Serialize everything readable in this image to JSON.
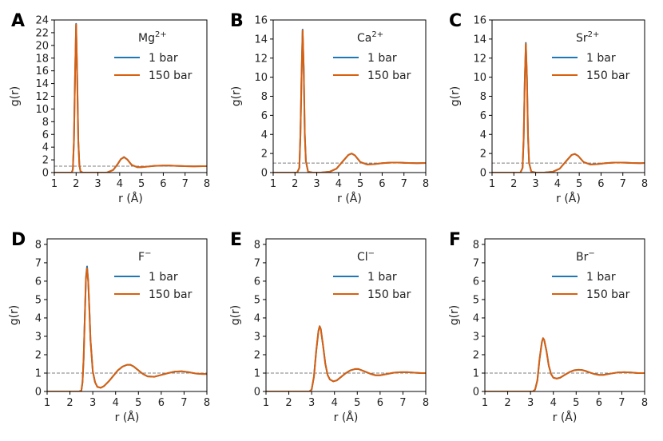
{
  "chart_data": [
    {
      "type": "line",
      "panel_label": "A",
      "legend_title": "Mg",
      "legend_sup": "2+",
      "xlabel": "r (Å)",
      "ylabel": "g(r)",
      "xlim": [
        1,
        8
      ],
      "ylim": [
        0,
        24
      ],
      "xticks": [
        "1",
        "2",
        "3",
        "4",
        "5",
        "6",
        "7",
        "8"
      ],
      "yticks": [
        "0",
        "2",
        "4",
        "6",
        "8",
        "10",
        "12",
        "14",
        "16",
        "18",
        "20",
        "22",
        "24"
      ],
      "reference_line": 1,
      "series": [
        {
          "name": "1 bar",
          "color": "#1f77b4",
          "x": [
            1.0,
            1.8,
            1.85,
            1.9,
            1.95,
            2.0,
            2.05,
            2.1,
            2.15,
            2.2,
            2.3,
            2.6,
            3.0,
            3.4,
            3.7,
            3.9,
            4.05,
            4.2,
            4.35,
            4.55,
            4.8,
            5.0,
            5.3,
            5.6,
            6.0,
            6.3,
            6.6,
            7.0,
            7.4,
            7.8,
            8.0
          ],
          "y": [
            0,
            0,
            0.5,
            5,
            15,
            23.4,
            15,
            5,
            1.2,
            0.2,
            0,
            0,
            0,
            0,
            0.4,
            1.3,
            2.1,
            2.45,
            2.05,
            1.2,
            0.85,
            0.85,
            0.95,
            1.05,
            1.1,
            1.1,
            1.05,
            1.0,
            0.98,
            1.0,
            1.0
          ]
        },
        {
          "name": "150 bar",
          "color": "#d95f0e",
          "x": [
            1.0,
            1.8,
            1.85,
            1.9,
            1.95,
            2.0,
            2.05,
            2.1,
            2.15,
            2.2,
            2.3,
            2.6,
            3.0,
            3.4,
            3.7,
            3.9,
            4.05,
            4.2,
            4.35,
            4.55,
            4.8,
            5.0,
            5.3,
            5.6,
            6.0,
            6.3,
            6.6,
            7.0,
            7.4,
            7.8,
            8.0
          ],
          "y": [
            0,
            0,
            0.5,
            5,
            15,
            23.3,
            15,
            5,
            1.2,
            0.2,
            0,
            0,
            0,
            0,
            0.4,
            1.3,
            2.1,
            2.4,
            2.05,
            1.2,
            0.85,
            0.85,
            0.95,
            1.05,
            1.1,
            1.1,
            1.05,
            1.0,
            0.98,
            1.0,
            1.0
          ]
        }
      ]
    },
    {
      "type": "line",
      "panel_label": "B",
      "legend_title": "Ca",
      "legend_sup": "2+",
      "xlabel": "r (Å)",
      "ylabel": "g(r)",
      "xlim": [
        1,
        8
      ],
      "ylim": [
        0,
        16
      ],
      "xticks": [
        "1",
        "2",
        "3",
        "4",
        "5",
        "6",
        "7",
        "8"
      ],
      "yticks": [
        "0",
        "2",
        "4",
        "6",
        "8",
        "10",
        "12",
        "14",
        "16"
      ],
      "reference_line": 1,
      "series": [
        {
          "name": "1 bar",
          "color": "#1f77b4",
          "x": [
            1.0,
            2.1,
            2.2,
            2.25,
            2.3,
            2.35,
            2.4,
            2.45,
            2.5,
            2.6,
            2.8,
            3.2,
            3.6,
            3.9,
            4.2,
            4.45,
            4.6,
            4.75,
            5.0,
            5.3,
            5.6,
            6.0,
            6.4,
            6.8,
            7.2,
            7.6,
            8.0
          ],
          "y": [
            0,
            0,
            0.5,
            4,
            10,
            15,
            11,
            4,
            1.2,
            0.1,
            0,
            0,
            0.1,
            0.4,
            1.2,
            1.85,
            2.0,
            1.8,
            1.1,
            0.85,
            0.88,
            0.98,
            1.05,
            1.05,
            1.0,
            0.98,
            1.0
          ]
        },
        {
          "name": "150 bar",
          "color": "#d95f0e",
          "x": [
            1.0,
            2.1,
            2.2,
            2.25,
            2.3,
            2.35,
            2.4,
            2.45,
            2.5,
            2.6,
            2.8,
            3.2,
            3.6,
            3.9,
            4.2,
            4.45,
            4.6,
            4.75,
            5.0,
            5.3,
            5.6,
            6.0,
            6.4,
            6.8,
            7.2,
            7.6,
            8.0
          ],
          "y": [
            0,
            0,
            0.5,
            4,
            10,
            14.9,
            11,
            4,
            1.2,
            0.1,
            0,
            0,
            0.1,
            0.4,
            1.2,
            1.85,
            2.0,
            1.8,
            1.1,
            0.85,
            0.88,
            0.98,
            1.05,
            1.05,
            1.0,
            0.98,
            1.0
          ]
        }
      ]
    },
    {
      "type": "line",
      "panel_label": "C",
      "legend_title": "Sr",
      "legend_sup": "2+",
      "xlabel": "r (Å)",
      "ylabel": "g(r)",
      "xlim": [
        1,
        8
      ],
      "ylim": [
        0,
        16
      ],
      "xticks": [
        "1",
        "2",
        "3",
        "4",
        "5",
        "6",
        "7",
        "8"
      ],
      "yticks": [
        "0",
        "2",
        "4",
        "6",
        "8",
        "10",
        "12",
        "14",
        "16"
      ],
      "reference_line": 1,
      "series": [
        {
          "name": "1 bar",
          "color": "#1f77b4",
          "x": [
            1.0,
            2.3,
            2.4,
            2.45,
            2.5,
            2.55,
            2.6,
            2.65,
            2.7,
            2.8,
            3.0,
            3.4,
            3.8,
            4.1,
            4.4,
            4.65,
            4.8,
            4.95,
            5.2,
            5.5,
            5.8,
            6.2,
            6.6,
            7.0,
            7.4,
            7.8,
            8.0
          ],
          "y": [
            0,
            0,
            0.5,
            3.5,
            9.5,
            13.6,
            10,
            3.8,
            1.0,
            0.1,
            0,
            0,
            0.1,
            0.4,
            1.2,
            1.85,
            1.95,
            1.75,
            1.1,
            0.85,
            0.88,
            0.98,
            1.05,
            1.05,
            1.0,
            0.98,
            1.0
          ]
        },
        {
          "name": "150 bar",
          "color": "#d95f0e",
          "x": [
            1.0,
            2.3,
            2.4,
            2.45,
            2.5,
            2.55,
            2.6,
            2.65,
            2.7,
            2.8,
            3.0,
            3.4,
            3.8,
            4.1,
            4.4,
            4.65,
            4.8,
            4.95,
            5.2,
            5.5,
            5.8,
            6.2,
            6.6,
            7.0,
            7.4,
            7.8,
            8.0
          ],
          "y": [
            0,
            0,
            0.5,
            3.5,
            9.5,
            13.5,
            10,
            3.8,
            1.0,
            0.1,
            0,
            0,
            0.1,
            0.4,
            1.2,
            1.85,
            1.95,
            1.75,
            1.1,
            0.85,
            0.88,
            0.98,
            1.05,
            1.05,
            1.0,
            0.98,
            1.0
          ]
        }
      ]
    },
    {
      "type": "line",
      "panel_label": "D",
      "legend_title": "F",
      "legend_sup": "−",
      "xlabel": "r (Å)",
      "ylabel": "g(r)",
      "xlim": [
        1,
        8
      ],
      "ylim": [
        0,
        8.3
      ],
      "xticks": [
        "1",
        "2",
        "3",
        "4",
        "5",
        "6",
        "7",
        "8"
      ],
      "yticks": [
        "0",
        "1",
        "2",
        "3",
        "4",
        "5",
        "6",
        "7",
        "8"
      ],
      "reference_line": 1,
      "series": [
        {
          "name": "1 bar",
          "color": "#1f77b4",
          "x": [
            1.0,
            2.4,
            2.5,
            2.55,
            2.6,
            2.65,
            2.7,
            2.75,
            2.8,
            2.85,
            2.9,
            3.0,
            3.1,
            3.2,
            3.35,
            3.5,
            3.7,
            3.9,
            4.1,
            4.3,
            4.5,
            4.65,
            4.8,
            5.0,
            5.2,
            5.4,
            5.7,
            6.0,
            6.3,
            6.6,
            6.9,
            7.2,
            7.5,
            7.8,
            8.0
          ],
          "y": [
            0,
            0,
            0.05,
            0.5,
            1.8,
            4.0,
            6.2,
            6.8,
            6.0,
            4.5,
            2.8,
            1.1,
            0.5,
            0.25,
            0.2,
            0.3,
            0.55,
            0.85,
            1.15,
            1.35,
            1.45,
            1.45,
            1.35,
            1.15,
            0.95,
            0.82,
            0.8,
            0.9,
            1.0,
            1.08,
            1.1,
            1.05,
            0.98,
            0.95,
            0.95
          ]
        },
        {
          "name": "150 bar",
          "color": "#d95f0e",
          "x": [
            1.0,
            2.4,
            2.5,
            2.55,
            2.6,
            2.65,
            2.7,
            2.75,
            2.8,
            2.85,
            2.9,
            3.0,
            3.1,
            3.2,
            3.35,
            3.5,
            3.7,
            3.9,
            4.1,
            4.3,
            4.5,
            4.65,
            4.8,
            5.0,
            5.2,
            5.4,
            5.7,
            6.0,
            6.3,
            6.6,
            6.9,
            7.2,
            7.5,
            7.8,
            8.0
          ],
          "y": [
            0,
            0,
            0.05,
            0.5,
            1.8,
            4.0,
            6.1,
            6.7,
            6.0,
            4.5,
            2.8,
            1.1,
            0.5,
            0.25,
            0.2,
            0.3,
            0.55,
            0.85,
            1.15,
            1.35,
            1.45,
            1.45,
            1.35,
            1.15,
            0.95,
            0.82,
            0.8,
            0.9,
            1.0,
            1.08,
            1.1,
            1.05,
            0.98,
            0.95,
            0.95
          ]
        }
      ]
    },
    {
      "type": "line",
      "panel_label": "E",
      "legend_title": "Cl",
      "legend_sup": "−",
      "xlabel": "r (Å)",
      "ylabel": "g(r)",
      "xlim": [
        1,
        8
      ],
      "ylim": [
        0,
        8.3
      ],
      "xticks": [
        "1",
        "2",
        "3",
        "4",
        "5",
        "6",
        "7",
        "8"
      ],
      "yticks": [
        "0",
        "1",
        "2",
        "3",
        "4",
        "5",
        "6",
        "7",
        "8"
      ],
      "reference_line": 1,
      "series": [
        {
          "name": "1 bar",
          "color": "#1f77b4",
          "x": [
            1.0,
            2.9,
            3.0,
            3.1,
            3.2,
            3.3,
            3.35,
            3.4,
            3.5,
            3.6,
            3.7,
            3.8,
            3.95,
            4.1,
            4.3,
            4.5,
            4.7,
            4.9,
            5.05,
            5.2,
            5.4,
            5.6,
            5.8,
            6.0,
            6.3,
            6.6,
            6.9,
            7.2,
            7.5,
            7.8,
            8.0
          ],
          "y": [
            0,
            0,
            0.1,
            0.8,
            2.2,
            3.3,
            3.55,
            3.4,
            2.5,
            1.5,
            0.9,
            0.65,
            0.55,
            0.6,
            0.8,
            1.0,
            1.15,
            1.22,
            1.22,
            1.15,
            1.05,
            0.95,
            0.88,
            0.88,
            0.95,
            1.02,
            1.05,
            1.05,
            1.02,
            1.0,
            1.0
          ]
        },
        {
          "name": "150 bar",
          "color": "#d95f0e",
          "x": [
            1.0,
            2.9,
            3.0,
            3.1,
            3.2,
            3.3,
            3.35,
            3.4,
            3.5,
            3.6,
            3.7,
            3.8,
            3.95,
            4.1,
            4.3,
            4.5,
            4.7,
            4.9,
            5.05,
            5.2,
            5.4,
            5.6,
            5.8,
            6.0,
            6.3,
            6.6,
            6.9,
            7.2,
            7.5,
            7.8,
            8.0
          ],
          "y": [
            0,
            0,
            0.1,
            0.8,
            2.2,
            3.3,
            3.55,
            3.4,
            2.5,
            1.5,
            0.9,
            0.65,
            0.55,
            0.6,
            0.8,
            1.0,
            1.15,
            1.22,
            1.22,
            1.15,
            1.05,
            0.95,
            0.88,
            0.88,
            0.95,
            1.02,
            1.05,
            1.05,
            1.02,
            1.0,
            1.0
          ]
        }
      ]
    },
    {
      "type": "line",
      "panel_label": "F",
      "legend_title": "Br",
      "legend_sup": "−",
      "xlabel": "r (Å)",
      "ylabel": "g(r)",
      "xlim": [
        1,
        8
      ],
      "ylim": [
        0,
        8.3
      ],
      "xticks": [
        "1",
        "2",
        "3",
        "4",
        "5",
        "6",
        "7",
        "8"
      ],
      "yticks": [
        "0",
        "1",
        "2",
        "3",
        "4",
        "5",
        "6",
        "7",
        "8"
      ],
      "reference_line": 1,
      "series": [
        {
          "name": "1 bar",
          "color": "#1f77b4",
          "x": [
            1.0,
            3.1,
            3.2,
            3.3,
            3.4,
            3.5,
            3.55,
            3.6,
            3.7,
            3.8,
            3.9,
            4.0,
            4.15,
            4.3,
            4.5,
            4.7,
            4.9,
            5.1,
            5.25,
            5.4,
            5.6,
            5.8,
            6.0,
            6.2,
            6.5,
            6.8,
            7.1,
            7.4,
            7.7,
            8.0
          ],
          "y": [
            0,
            0,
            0.1,
            0.6,
            1.8,
            2.7,
            2.9,
            2.8,
            2.2,
            1.4,
            0.95,
            0.75,
            0.7,
            0.75,
            0.9,
            1.05,
            1.15,
            1.18,
            1.17,
            1.12,
            1.03,
            0.95,
            0.9,
            0.9,
            0.97,
            1.03,
            1.05,
            1.03,
            1.0,
            1.0
          ]
        },
        {
          "name": "150 bar",
          "color": "#d95f0e",
          "x": [
            1.0,
            3.1,
            3.2,
            3.3,
            3.4,
            3.5,
            3.55,
            3.6,
            3.7,
            3.8,
            3.9,
            4.0,
            4.15,
            4.3,
            4.5,
            4.7,
            4.9,
            5.1,
            5.25,
            5.4,
            5.6,
            5.8,
            6.0,
            6.2,
            6.5,
            6.8,
            7.1,
            7.4,
            7.7,
            8.0
          ],
          "y": [
            0,
            0,
            0.1,
            0.6,
            1.8,
            2.7,
            2.9,
            2.8,
            2.2,
            1.4,
            0.95,
            0.75,
            0.7,
            0.75,
            0.9,
            1.05,
            1.15,
            1.18,
            1.17,
            1.12,
            1.03,
            0.95,
            0.9,
            0.9,
            0.97,
            1.03,
            1.05,
            1.03,
            1.0,
            1.0
          ]
        }
      ]
    }
  ]
}
